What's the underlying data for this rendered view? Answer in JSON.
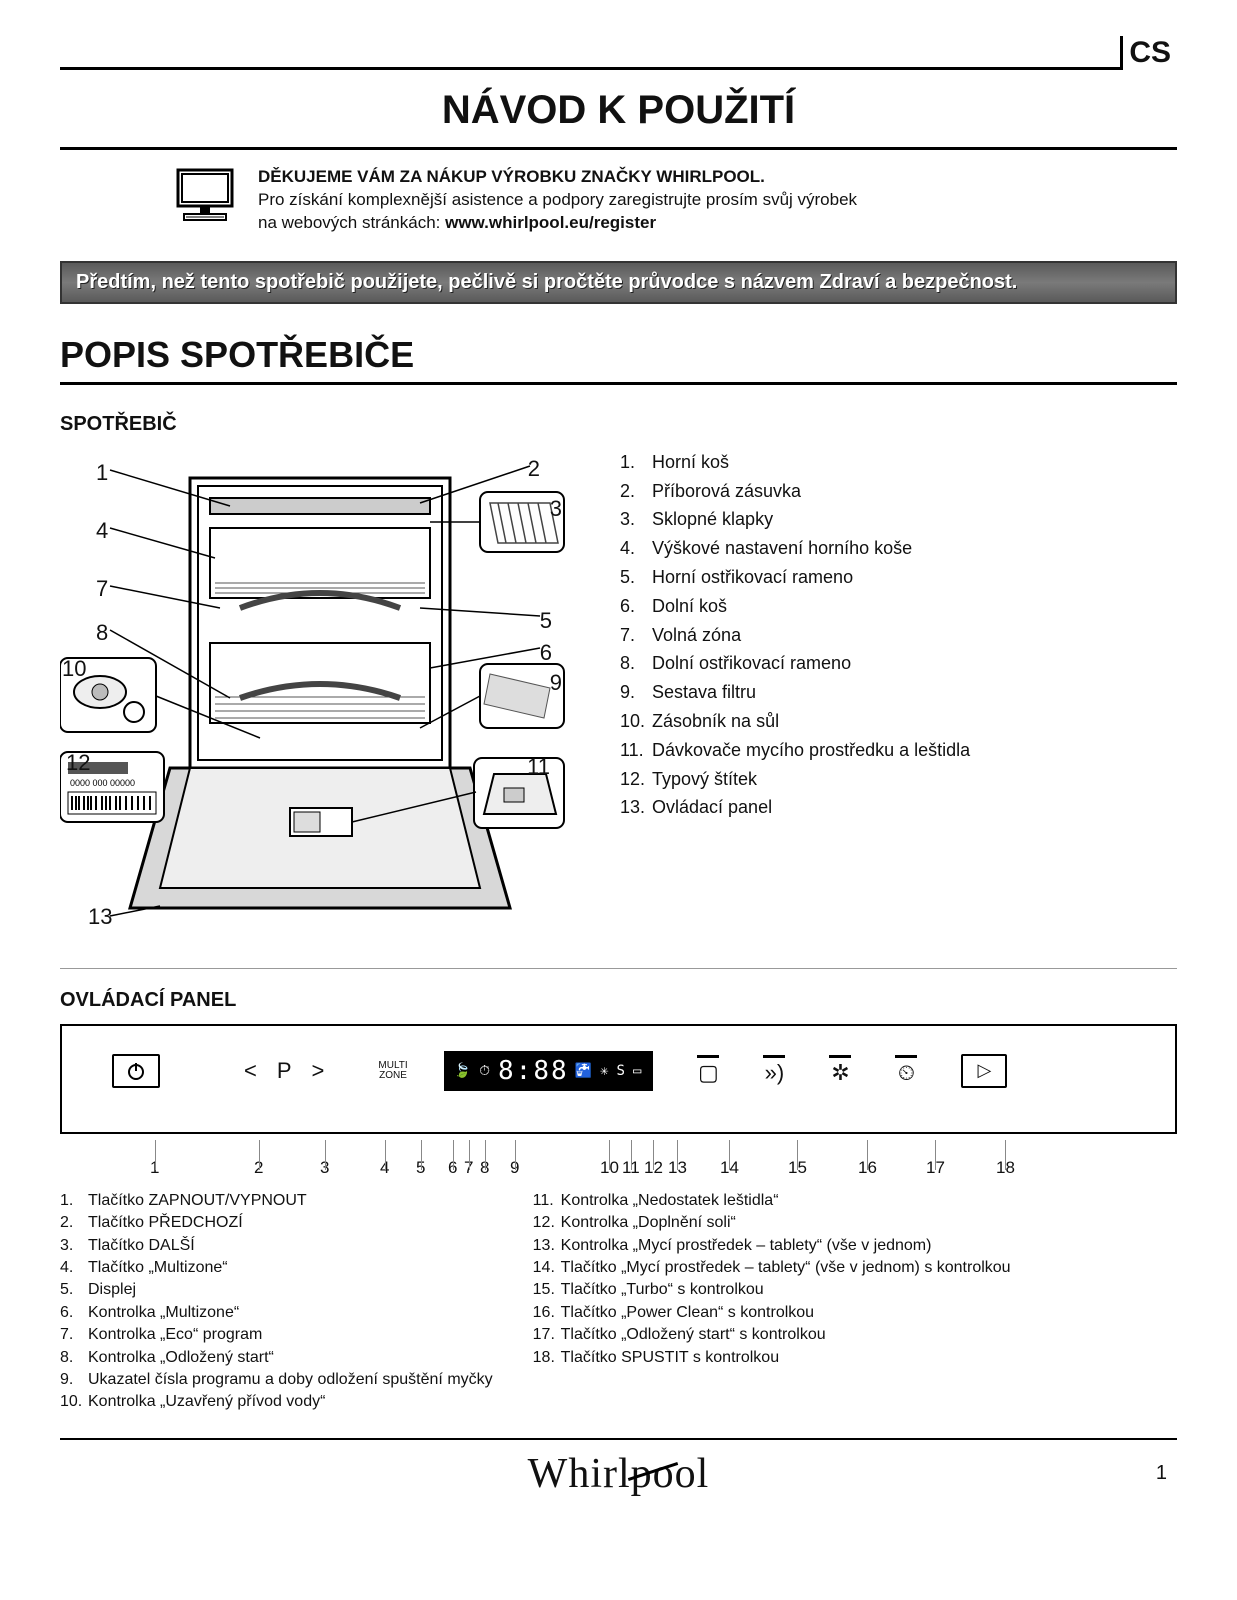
{
  "lang_code": "CS",
  "main_title": "NÁVOD K POUŽITÍ",
  "intro": {
    "bold": "DĚKUJEME VÁM ZA NÁKUP VÝROBKU ZNAČKY WHIRLPOOL.",
    "line1": "Pro získání komplexnější asistence a podpory zaregistrujte prosím svůj výrobek",
    "line2_prefix": "na webových stránkách: ",
    "url": "www.whirlpool.eu/register"
  },
  "banner": "Předtím, než tento spotřebič použijete, pečlivě si pročtěte průvodce s názvem Zdraví a bezpečnost.",
  "section_title": "POPIS SPOTŘEBIČE",
  "appliance_subtitle": "SPOTŘEBIČ",
  "diagram_labels": [
    "1",
    "2",
    "3",
    "4",
    "5",
    "6",
    "7",
    "8",
    "9",
    "10",
    "11",
    "12",
    "13"
  ],
  "parts": [
    "Horní koš",
    "Příborová zásuvka",
    "Sklopné klapky",
    "Výškové nastavení horního koše",
    "Horní ostřikovací rameno",
    "Dolní koš",
    "Volná zóna",
    "Dolní ostřikovací rameno",
    "Sestava filtru",
    "Zásobník na sůl",
    "Dávkovače mycího prostředku a leštidla",
    "Typový štítek",
    "Ovládací panel"
  ],
  "control_panel_subtitle": "OVLÁDACÍ PANEL",
  "cp": {
    "multizone": "MULTI\nZONE",
    "p": "P",
    "display": "8:88"
  },
  "cp_ticks": [
    "1",
    "2",
    "3",
    "4",
    "5",
    "6",
    "7",
    "8",
    "9",
    "10",
    "11",
    "12",
    "13",
    "14",
    "15",
    "16",
    "17",
    "18"
  ],
  "cp_legend_left": [
    "Tlačítko ZAPNOUT/VYPNOUT",
    "Tlačítko PŘEDCHOZÍ",
    "Tlačítko DALŠÍ",
    "Tlačítko „Multizone“",
    "Displej",
    "Kontrolka „Multizone“",
    "Kontrolka „Eco“ program",
    "Kontrolka „Odložený start“",
    "Ukazatel čísla programu a doby odložení spuštění myčky",
    "Kontrolka „Uzavřený přívod vody“"
  ],
  "cp_legend_right": [
    "Kontrolka „Nedostatek leštidla“",
    "Kontrolka „Doplnění soli“",
    "Kontrolka „Mycí prostředek – tablety“ (vše v jednom)",
    "Tlačítko „Mycí prostředek – tablety“ (vše v jednom) s kontrolkou",
    "Tlačítko „Turbo“ s kontrolkou",
    "Tlačítko „Power Clean“ s kontrolkou",
    "Tlačítko „Odložený start“ s kontrolkou",
    "Tlačítko SPUSTIT s kontrolkou"
  ],
  "footer": {
    "brand": "Whirlpool",
    "page": "1"
  },
  "colors": {
    "text": "#111111",
    "rule": "#000000",
    "banner_bg": "#6a6a6a",
    "banner_text": "#ffffff",
    "lcd_bg": "#000000",
    "lcd_fg": "#ffffff"
  }
}
